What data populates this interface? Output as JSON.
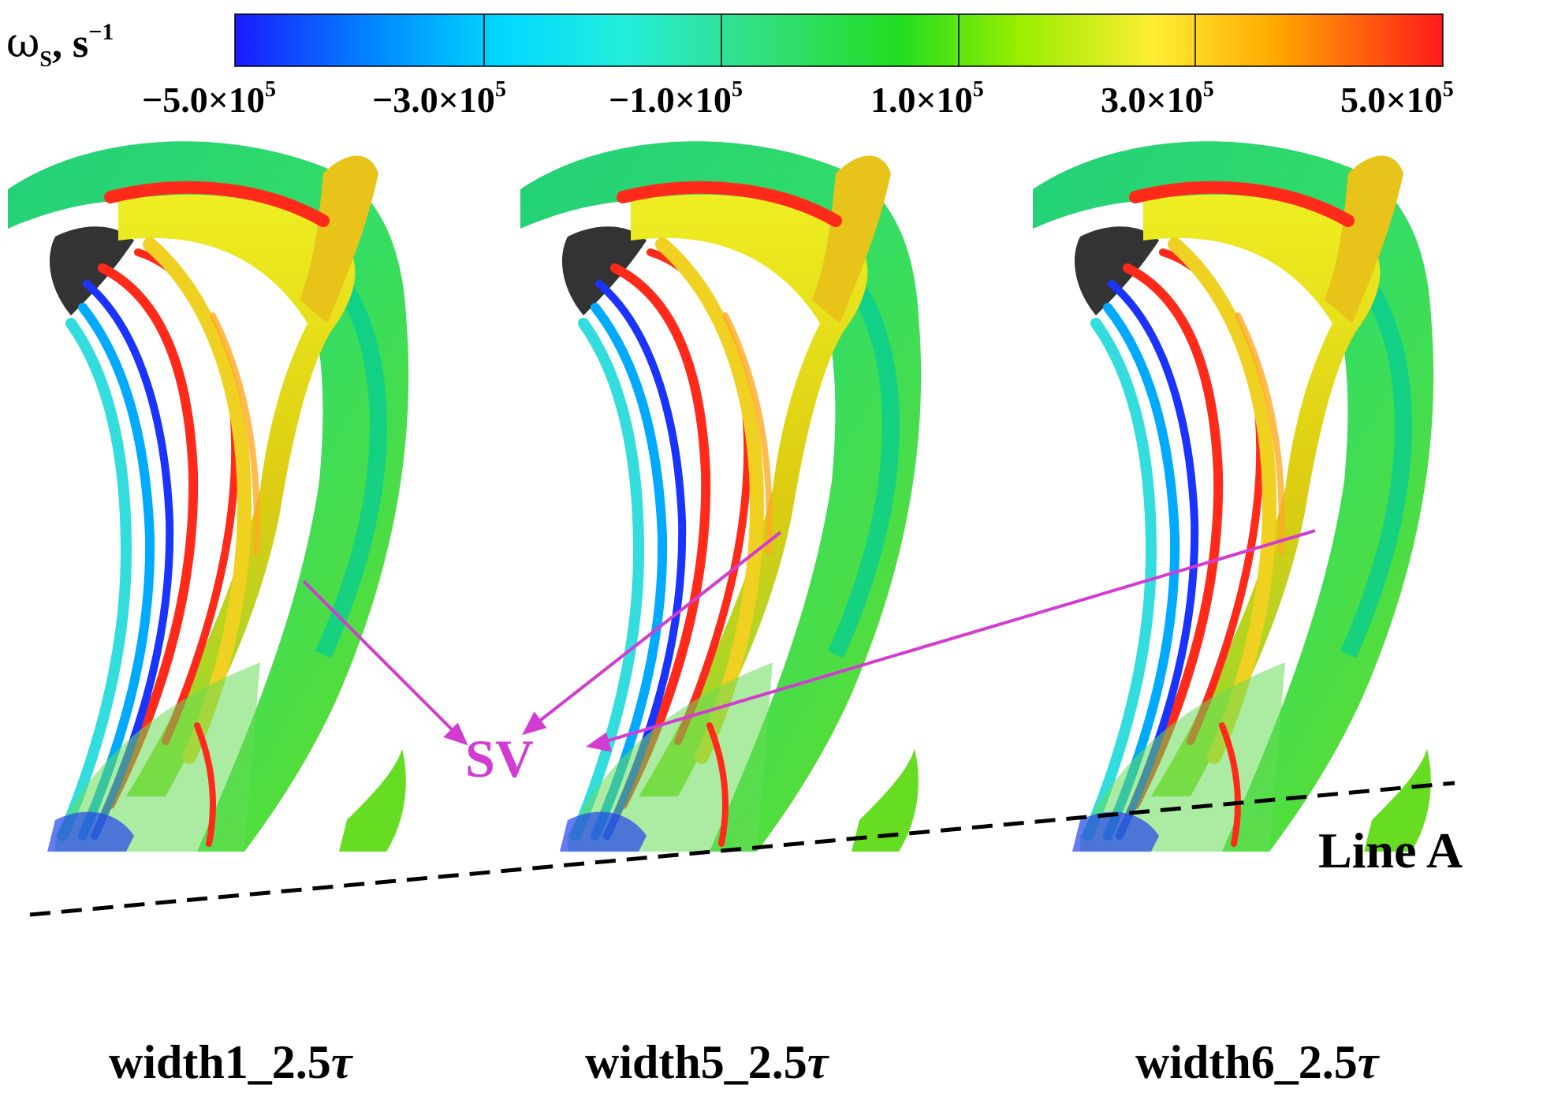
{
  "colorbar": {
    "symbol": "ω",
    "subscript": "S",
    "unit": ", s",
    "unit_exponent": "−1",
    "colormap": [
      "#1a1aff",
      "#00aaff",
      "#00eaea",
      "#33e0a0",
      "#00dd33",
      "#99ee00",
      "#ffee33",
      "#ffaa00",
      "#ff2200"
    ],
    "ticks": [
      {
        "mantissa": "−5.0×10",
        "exp": "5"
      },
      {
        "mantissa": "−3.0×10",
        "exp": "5"
      },
      {
        "mantissa": "−1.0×10",
        "exp": "5"
      },
      {
        "mantissa": "1.0×10",
        "exp": "5"
      },
      {
        "mantissa": "3.0×10",
        "exp": "5"
      },
      {
        "mantissa": "5.0×10",
        "exp": "5"
      }
    ]
  },
  "panels": [
    {
      "label": "width1_2.5",
      "suffix": "τ"
    },
    {
      "label": "width5_2.5",
      "suffix": "τ"
    },
    {
      "label": "width6_2.5",
      "suffix": "τ"
    }
  ],
  "annotations": {
    "sv_label": "SV",
    "sv_color": "#d23cd2",
    "line_label": "Line A"
  }
}
